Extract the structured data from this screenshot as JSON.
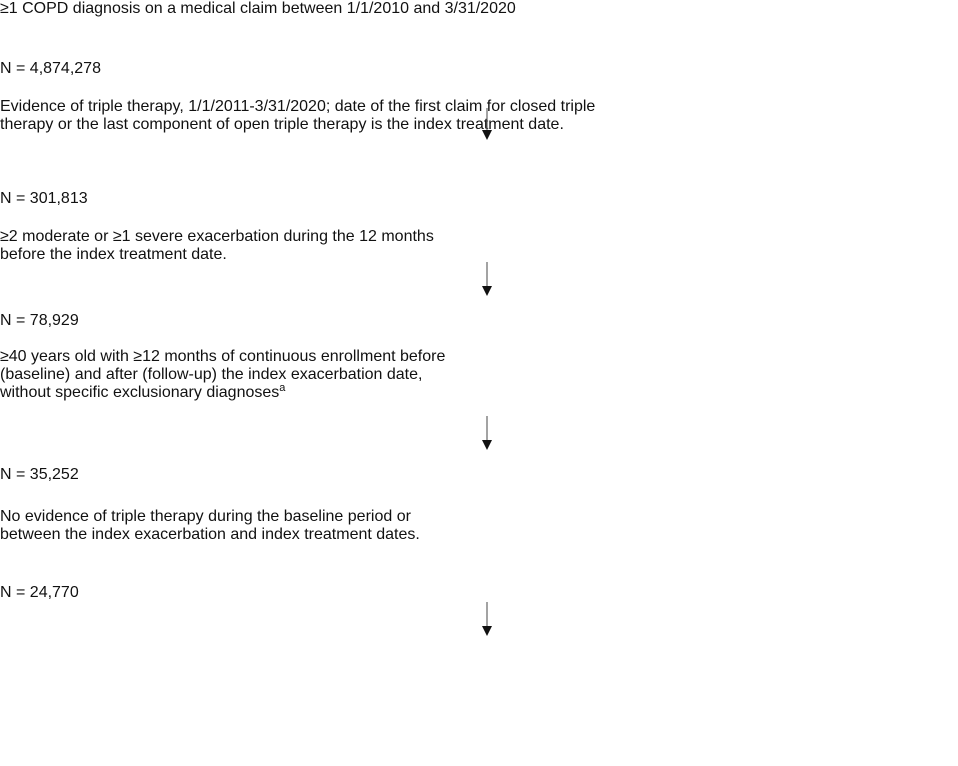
{
  "steps": [
    {
      "lines": [
        "≥1 COPD diagnosis on a medical claim between 1/1/2010 and 3/31/2020"
      ],
      "count": "N = 4,874,278"
    },
    {
      "lines": [
        "Evidence of triple therapy, 1/1/2011-3/31/2020; date of the first claim for closed triple",
        "therapy or the last component of open triple therapy is the index treatment date."
      ],
      "count": "N = 301,813"
    },
    {
      "lines": [
        "≥2 moderate or ≥1 severe exacerbation during the 12 months",
        "before the index treatment date."
      ],
      "count": "N = 78,929"
    },
    {
      "lines": [
        "≥40 years old with ≥12 months of continuous enrollment before",
        "(baseline) and after (follow-up) the index exacerbation date,",
        "without specific exclusionary diagnoses"
      ],
      "footnote": "a",
      "count": "N = 35,252"
    },
    {
      "lines": [
        "No evidence of triple therapy during the baseline period or",
        "between the index exacerbation and index treatment dates."
      ],
      "count": "N = 24,770"
    }
  ]
}
